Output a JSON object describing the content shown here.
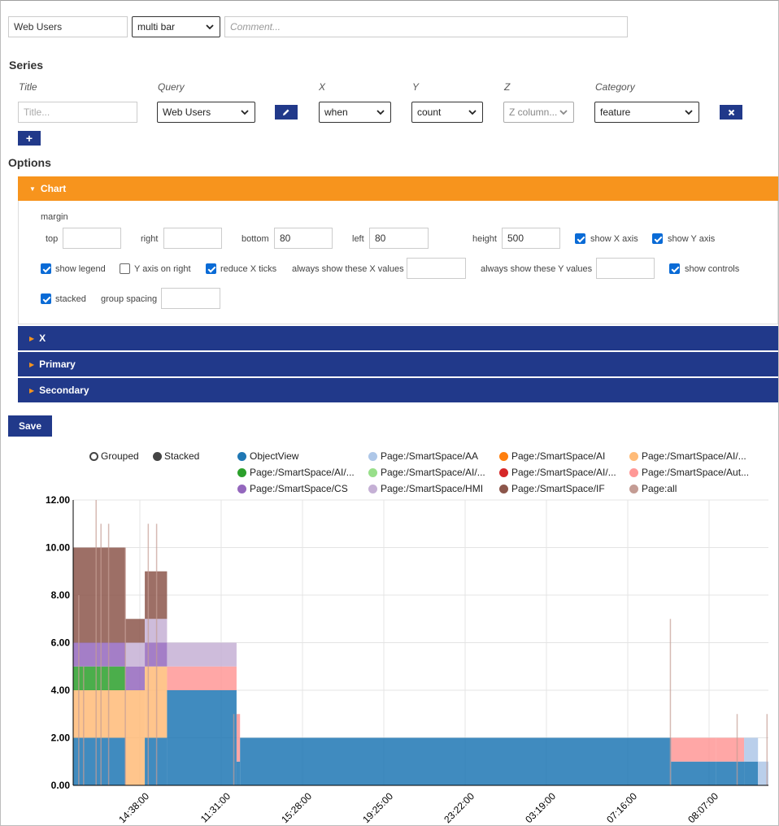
{
  "header": {
    "name_value": "Web Users",
    "chart_type": "multi bar",
    "comment_placeholder": "Comment..."
  },
  "series_section": {
    "heading": "Series",
    "columns": {
      "title": "Title",
      "query": "Query",
      "x": "X",
      "y": "Y",
      "z": "Z",
      "category": "Category"
    },
    "row": {
      "title_placeholder": "Title...",
      "query": "Web Users",
      "x": "when",
      "y": "count",
      "z_placeholder": "Z column...",
      "category": "feature"
    },
    "edit_icon": "pencil-icon",
    "remove_icon": "close-icon",
    "add_label": "+"
  },
  "options": {
    "heading": "Options",
    "chart_panel": {
      "title": "Chart",
      "margin_label": "margin",
      "top_label": "top",
      "top_value": "",
      "right_label": "right",
      "right_value": "",
      "bottom_label": "bottom",
      "bottom_value": "80",
      "left_label": "left",
      "left_value": "80",
      "height_label": "height",
      "height_value": "500",
      "show_x_axis": "show X axis",
      "show_y_axis": "show Y axis",
      "show_legend": "show legend",
      "y_axis_on_right": "Y axis on right",
      "reduce_x_ticks": "reduce X ticks",
      "always_x": "always show these X values",
      "always_y": "always show these Y values",
      "show_controls": "show controls",
      "stacked": "stacked",
      "group_spacing": "group spacing",
      "checks": {
        "show_x_axis": true,
        "show_y_axis": true,
        "show_legend": true,
        "y_axis_on_right": false,
        "reduce_x_ticks": true,
        "show_controls": true,
        "stacked": true
      }
    },
    "panels": [
      "X",
      "Primary",
      "Secondary"
    ]
  },
  "save_label": "Save",
  "colors": {
    "accent_orange": "#f7941d",
    "panel_blue": "#21398a",
    "checkbox_blue": "#0a6bd6"
  },
  "chart_data": {
    "type": "bar",
    "stacked": true,
    "controls": [
      "Grouped",
      "Stacked"
    ],
    "legend": [
      {
        "name": "ObjectView",
        "color": "#1f77b4"
      },
      {
        "name": "Page:/SmartSpace/AA",
        "color": "#aec7e8"
      },
      {
        "name": "Page:/SmartSpace/AI",
        "color": "#ff7f0e"
      },
      {
        "name": "Page:/SmartSpace/AI/...",
        "color": "#ffbb78"
      },
      {
        "name": "Page:/SmartSpace/AI/...",
        "color": "#2ca02c"
      },
      {
        "name": "Page:/SmartSpace/AI/...",
        "color": "#98df8a"
      },
      {
        "name": "Page:/SmartSpace/AI/...",
        "color": "#d62728"
      },
      {
        "name": "Page:/SmartSpace/Aut...",
        "color": "#ff9896"
      },
      {
        "name": "Page:/SmartSpace/CS",
        "color": "#9467bd"
      },
      {
        "name": "Page:/SmartSpace/HMI",
        "color": "#c5b0d5"
      },
      {
        "name": "Page:/SmartSpace/IF",
        "color": "#8c564b"
      },
      {
        "name": "Page:all",
        "color": "#c49c94"
      }
    ],
    "y_ticks": [
      "0.00",
      "2.00",
      "4.00",
      "6.00",
      "8.00",
      "10.00",
      "12.00"
    ],
    "ylim": [
      0,
      12
    ],
    "x_ticks": [
      "14:38:00",
      "11:31:00",
      "15:28:00",
      "19:25:00",
      "23:22:00",
      "03:19:00",
      "07:16:00",
      "08:07:00"
    ],
    "grid": true,
    "segments": [
      {
        "from": 0.0,
        "to": 0.075,
        "stack": [
          {
            "c": "#1f77b4",
            "v": 2
          },
          {
            "c": "#ffbb78",
            "v": 2
          },
          {
            "c": "#2ca02c",
            "v": 1
          },
          {
            "c": "#9467bd",
            "v": 1
          },
          {
            "c": "#8c564b",
            "v": 4
          }
        ]
      },
      {
        "from": 0.075,
        "to": 0.103,
        "stack": [
          {
            "c": "#ffbb78",
            "v": 4
          },
          {
            "c": "#9467bd",
            "v": 1
          },
          {
            "c": "#c5b0d5",
            "v": 1
          },
          {
            "c": "#8c564b",
            "v": 1
          }
        ]
      },
      {
        "from": 0.103,
        "to": 0.135,
        "stack": [
          {
            "c": "#1f77b4",
            "v": 2
          },
          {
            "c": "#ffbb78",
            "v": 3
          },
          {
            "c": "#9467bd",
            "v": 1
          },
          {
            "c": "#c5b0d5",
            "v": 1
          },
          {
            "c": "#8c564b",
            "v": 2
          }
        ]
      },
      {
        "from": 0.135,
        "to": 0.235,
        "stack": [
          {
            "c": "#1f77b4",
            "v": 4
          },
          {
            "c": "#ff9896",
            "v": 1
          },
          {
            "c": "#c5b0d5",
            "v": 1
          }
        ]
      },
      {
        "from": 0.235,
        "to": 0.24,
        "stack": [
          {
            "c": "#1f77b4",
            "v": 1
          },
          {
            "c": "#ff9896",
            "v": 2
          }
        ]
      },
      {
        "from": 0.24,
        "to": 0.86,
        "stack": [
          {
            "c": "#1f77b4",
            "v": 2
          }
        ]
      },
      {
        "from": 0.86,
        "to": 0.925,
        "stack": [
          {
            "c": "#1f77b4",
            "v": 1
          },
          {
            "c": "#ff9896",
            "v": 1
          }
        ]
      },
      {
        "from": 0.925,
        "to": 0.965,
        "stack": [
          {
            "c": "#1f77b4",
            "v": 1
          },
          {
            "c": "#ff9896",
            "v": 1
          }
        ]
      },
      {
        "from": 0.965,
        "to": 0.985,
        "stack": [
          {
            "c": "#1f77b4",
            "v": 1
          },
          {
            "c": "#aec7e8",
            "v": 1
          }
        ]
      },
      {
        "from": 0.985,
        "to": 1.0,
        "stack": [
          {
            "c": "#aec7e8",
            "v": 1
          }
        ]
      }
    ],
    "spikes": [
      {
        "at": 0.008,
        "v": 8
      },
      {
        "at": 0.015,
        "v": 5
      },
      {
        "at": 0.033,
        "v": 12
      },
      {
        "at": 0.04,
        "v": 11
      },
      {
        "at": 0.051,
        "v": 11
      },
      {
        "at": 0.075,
        "v": 10
      },
      {
        "at": 0.108,
        "v": 11
      },
      {
        "at": 0.12,
        "v": 11
      },
      {
        "at": 0.231,
        "v": 3
      },
      {
        "at": 0.859,
        "v": 7
      },
      {
        "at": 0.955,
        "v": 3
      },
      {
        "at": 0.998,
        "v": 3
      }
    ]
  }
}
